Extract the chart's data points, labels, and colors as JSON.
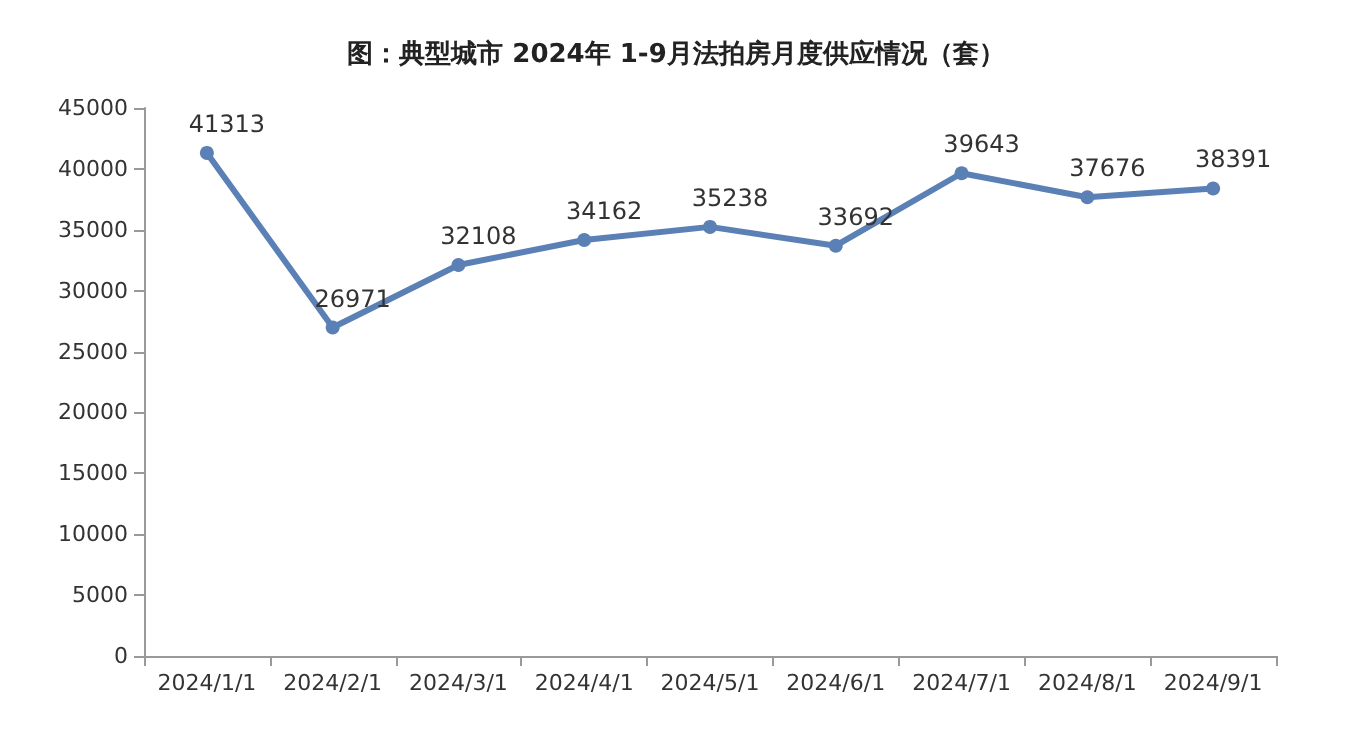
{
  "chart_data": {
    "type": "line",
    "title": "图：典型城市 2024年 1-9月法拍房月度供应情况（套）",
    "categories": [
      "2024/1/1",
      "2024/2/1",
      "2024/3/1",
      "2024/4/1",
      "2024/5/1",
      "2024/6/1",
      "2024/7/1",
      "2024/8/1",
      "2024/9/1"
    ],
    "values": [
      41313,
      26971,
      32108,
      34162,
      35238,
      33692,
      39643,
      37676,
      38391
    ],
    "color": "#5b80b5",
    "ylim": [
      0,
      45000
    ],
    "yticks": [
      0,
      5000,
      10000,
      15000,
      20000,
      25000,
      30000,
      35000,
      40000,
      45000
    ],
    "grid": false,
    "marker": "circle",
    "line_style": "solid",
    "data_labels": true
  }
}
